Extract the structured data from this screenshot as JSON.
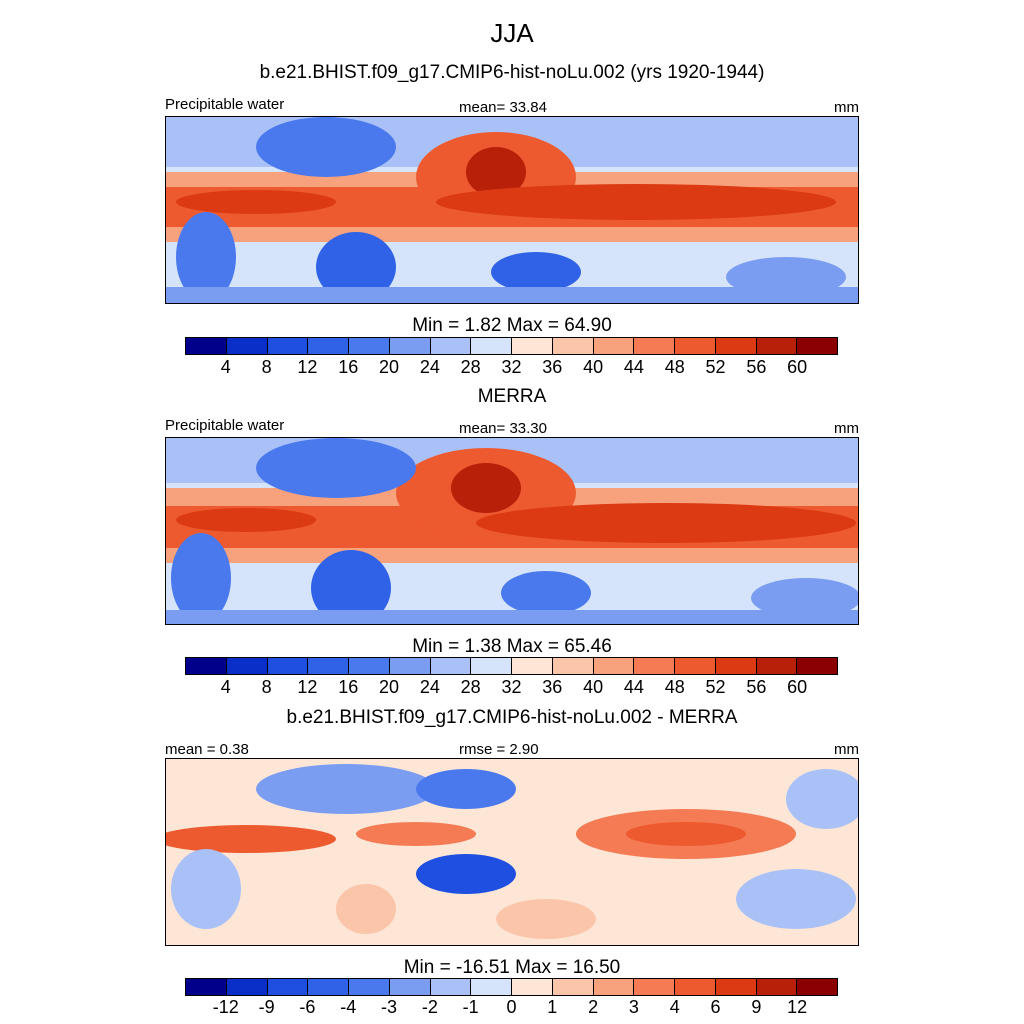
{
  "page_title": "JJA",
  "panels": [
    {
      "id": "model",
      "title": "b.e21.BHIST.f09_g17.CMIP6-hist-noLu.002 (yrs 1920-1944)",
      "left_label": "Precipitable water",
      "center_label": "mean=  33.84",
      "right_label": "mm",
      "minmax": "Min =   1.82 Max =  64.90"
    },
    {
      "id": "obs",
      "title": "MERRA",
      "left_label": "Precipitable water",
      "center_label": "mean=  33.30",
      "right_label": "mm",
      "minmax": "Min =   1.38 Max =  65.46"
    },
    {
      "id": "diff",
      "title": "b.e21.BHIST.f09_g17.CMIP6-hist-noLu.002 - MERRA",
      "left_label": "mean =   0.38",
      "center_label": "rmse =   2.90",
      "right_label": "mm",
      "minmax": "Min = -16.51 Max =  16.50"
    }
  ],
  "colors": {
    "levels": [
      "#00008b",
      "#0a2ec8",
      "#1e4fe0",
      "#2f62e6",
      "#4a79ee",
      "#7a9df2",
      "#a9c1f7",
      "#d5e3fb",
      "#fde6d6",
      "#fbc5aa",
      "#f7a27c",
      "#f47b53",
      "#ee5a2f",
      "#dc3a12",
      "#b8200a",
      "#8b0000"
    ]
  },
  "chart_data": [
    {
      "type": "heatmap",
      "title": "b.e21.BHIST.f09_g17.CMIP6-hist-noLu.002 (yrs 1920-1944)",
      "variable": "Precipitable water",
      "units": "mm",
      "mean": 33.84,
      "min": 1.82,
      "max": 64.9,
      "colorbar_levels": [
        "4",
        "8",
        "12",
        "16",
        "20",
        "24",
        "28",
        "32",
        "36",
        "40",
        "44",
        "48",
        "52",
        "56",
        "60"
      ]
    },
    {
      "type": "heatmap",
      "title": "MERRA",
      "variable": "Precipitable water",
      "units": "mm",
      "mean": 33.3,
      "min": 1.38,
      "max": 65.46,
      "colorbar_levels": [
        "4",
        "8",
        "12",
        "16",
        "20",
        "24",
        "28",
        "32",
        "36",
        "40",
        "44",
        "48",
        "52",
        "56",
        "60"
      ]
    },
    {
      "type": "heatmap",
      "title": "b.e21.BHIST.f09_g17.CMIP6-hist-noLu.002 - MERRA",
      "units": "mm",
      "mean": 0.38,
      "rmse": 2.9,
      "min": -16.51,
      "max": 16.5,
      "colorbar_levels": [
        "-12",
        "-9",
        "-6",
        "-4",
        "-3",
        "-2",
        "-1",
        "0",
        "1",
        "2",
        "3",
        "4",
        "6",
        "9",
        "12"
      ]
    }
  ]
}
